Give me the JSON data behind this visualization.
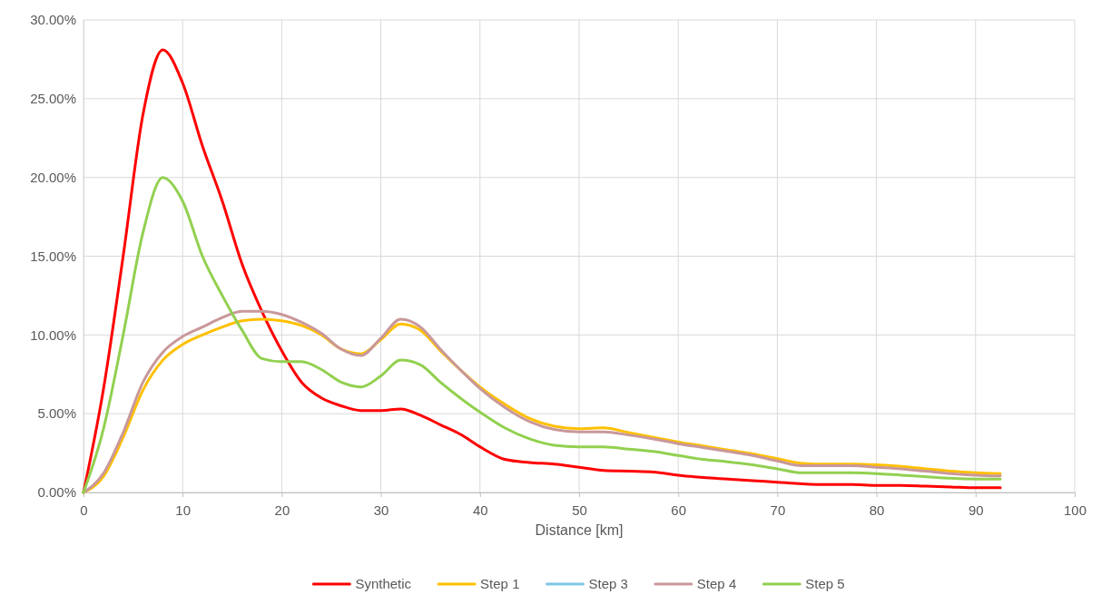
{
  "chart_data": {
    "type": "line",
    "xlabel": "Distance [km]",
    "x": [
      0,
      2,
      4,
      6,
      8,
      10,
      12,
      14,
      16,
      18,
      20,
      22,
      24,
      26,
      28,
      30,
      32,
      34,
      36,
      38,
      40,
      42.5,
      45,
      47.5,
      50,
      52.5,
      55,
      57.5,
      60,
      62.5,
      65,
      67.5,
      70,
      72.5,
      75,
      77.5,
      80,
      82.5,
      85,
      87.5,
      90,
      92.5
    ],
    "series": [
      {
        "name": "Synthetic",
        "color": "#ff0000",
        "values": [
          0,
          6.5,
          15,
          24,
          28.1,
          26,
          22,
          18.5,
          14.5,
          11.5,
          9,
          7,
          6,
          5.5,
          5.2,
          5.2,
          5.3,
          4.9,
          4.3,
          3.7,
          2.9,
          2.1,
          1.9,
          1.8,
          1.6,
          1.4,
          1.35,
          1.3,
          1.1,
          0.95,
          0.85,
          0.75,
          0.65,
          0.55,
          0.5,
          0.5,
          0.45,
          0.45,
          0.4,
          0.35,
          0.3,
          0.3
        ]
      },
      {
        "name": "Step 1",
        "color": "#ffc000",
        "values": [
          0,
          1,
          3.5,
          6.5,
          8.4,
          9.4,
          10,
          10.5,
          10.9,
          11,
          10.9,
          10.6,
          10,
          9.1,
          8.8,
          9.7,
          10.7,
          10.3,
          9,
          7.8,
          6.7,
          5.6,
          4.7,
          4.2,
          4.05,
          4.1,
          3.8,
          3.5,
          3.2,
          2.95,
          2.7,
          2.45,
          2.15,
          1.85,
          1.8,
          1.8,
          1.75,
          1.65,
          1.5,
          1.35,
          1.25,
          1.2
        ]
      },
      {
        "name": "Step 3",
        "color": "#7ec8e3",
        "values": [
          null,
          null,
          null,
          null,
          null,
          null,
          null,
          null,
          null,
          null,
          null,
          null,
          null,
          null,
          null,
          null,
          null,
          null,
          null,
          null,
          null,
          null,
          null,
          null,
          null,
          null,
          null,
          null,
          null,
          null,
          null,
          null,
          null,
          null,
          null,
          null,
          null,
          null,
          null,
          null,
          null,
          null
        ]
      },
      {
        "name": "Step 4",
        "color": "#c9989a",
        "values": [
          0,
          1.2,
          3.8,
          7,
          8.9,
          9.9,
          10.5,
          11.1,
          11.5,
          11.5,
          11.3,
          10.8,
          10.1,
          9.1,
          8.7,
          9.8,
          11,
          10.5,
          9.1,
          7.8,
          6.6,
          5.4,
          4.5,
          4,
          3.85,
          3.85,
          3.65,
          3.4,
          3.1,
          2.85,
          2.6,
          2.35,
          2,
          1.7,
          1.7,
          1.7,
          1.6,
          1.5,
          1.35,
          1.2,
          1.1,
          1.05
        ]
      },
      {
        "name": "Step 5",
        "color": "#92d050",
        "values": [
          0,
          4,
          10,
          16.5,
          20,
          18.5,
          15,
          12.5,
          10.3,
          8.5,
          8.3,
          8.3,
          7.8,
          7,
          6.7,
          7.4,
          8.4,
          8.1,
          7,
          6,
          5.1,
          4.1,
          3.4,
          3,
          2.9,
          2.9,
          2.75,
          2.6,
          2.35,
          2.1,
          1.95,
          1.75,
          1.5,
          1.25,
          1.25,
          1.25,
          1.2,
          1.1,
          1,
          0.9,
          0.85,
          0.85
        ]
      }
    ],
    "xlim": [
      0,
      100
    ],
    "xticks": [
      0,
      10,
      20,
      30,
      40,
      50,
      60,
      70,
      80,
      90,
      100
    ],
    "ylim": [
      0,
      30
    ],
    "yticks": [
      {
        "value": 0,
        "label": "0.00%"
      },
      {
        "value": 5,
        "label": "5.00%"
      },
      {
        "value": 10,
        "label": "10.00%"
      },
      {
        "value": 15,
        "label": "15.00%"
      },
      {
        "value": 20,
        "label": "20.00%"
      },
      {
        "value": 25,
        "label": "25.00%"
      },
      {
        "value": 30,
        "label": "30.00%"
      }
    ],
    "grid": true,
    "legend": "bottom",
    "marker": "none",
    "line_style": "solid"
  }
}
